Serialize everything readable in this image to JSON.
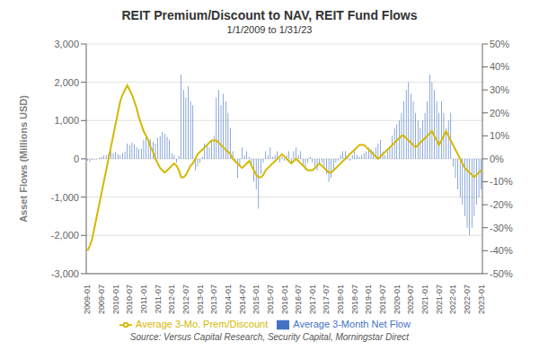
{
  "chart_data": {
    "type": "bar",
    "title": "REIT Premium/Discount to NAV, REIT Fund Flows",
    "subtitle": "1/1/2009 to 1/31/23",
    "ylabel": "Asset Flows (Millions USD)",
    "annotations": [
      "Source: Versus Capital Research, Security Capital, Morningstar Direct"
    ],
    "categories": [
      "2009-01",
      null,
      null,
      null,
      null,
      null,
      "2009-07",
      null,
      null,
      null,
      null,
      null,
      "2010-01",
      null,
      null,
      null,
      null,
      null,
      "2010-07",
      null,
      null,
      null,
      null,
      null,
      "2011-01",
      null,
      null,
      null,
      null,
      null,
      "2011-07",
      null,
      null,
      null,
      null,
      null,
      "2012-01",
      null,
      null,
      null,
      null,
      null,
      "2012-07",
      null,
      null,
      null,
      null,
      null,
      "2013-01",
      null,
      null,
      null,
      null,
      null,
      "2013-07",
      null,
      null,
      null,
      null,
      null,
      "2014-01",
      null,
      null,
      null,
      null,
      null,
      "2014-07",
      null,
      null,
      null,
      null,
      null,
      "2015-01",
      null,
      null,
      null,
      null,
      null,
      "2015-07",
      null,
      null,
      null,
      null,
      null,
      "2016-01",
      null,
      null,
      null,
      null,
      null,
      "2016-07",
      null,
      null,
      null,
      null,
      null,
      "2017-01",
      null,
      null,
      null,
      null,
      null,
      "2017-07",
      null,
      null,
      null,
      null,
      null,
      "2018-01",
      null,
      null,
      null,
      null,
      null,
      "2018-07",
      null,
      null,
      null,
      null,
      null,
      "2019-01",
      null,
      null,
      null,
      null,
      null,
      "2019-07",
      null,
      null,
      null,
      null,
      null,
      "2020-01",
      null,
      null,
      null,
      null,
      null,
      "2020-07",
      null,
      null,
      null,
      null,
      null,
      "2021-01",
      null,
      null,
      null,
      null,
      null,
      "2021-07",
      null,
      null,
      null,
      null,
      null,
      "2022-01",
      null,
      null,
      null,
      null,
      null,
      "2022-07",
      null,
      null,
      null,
      null,
      null,
      "2023-01"
    ],
    "series": [
      {
        "name": "Average 3-Month Net Flow",
        "type": "bar",
        "color": "#4472c4",
        "values": [
          -50,
          -80,
          -30,
          -20,
          -10,
          30,
          50,
          80,
          100,
          120,
          200,
          150,
          180,
          130,
          90,
          160,
          190,
          400,
          350,
          420,
          380,
          300,
          250,
          270,
          500,
          600,
          480,
          520,
          450,
          400,
          550,
          600,
          700,
          650,
          580,
          500,
          150,
          100,
          -100,
          80,
          2200,
          1800,
          1600,
          1900,
          1500,
          1400,
          -300,
          -200,
          -100,
          50,
          400,
          350,
          300,
          500,
          600,
          1600,
          1800,
          1400,
          1700,
          1500,
          1200,
          800,
          200,
          -100,
          -500,
          -200,
          300,
          100,
          200,
          50,
          -200,
          -600,
          -800,
          -1300,
          -400,
          -100,
          200,
          100,
          300,
          50,
          100,
          200,
          -100,
          50,
          -50,
          100,
          200,
          -100,
          200,
          300,
          100,
          200,
          -200,
          -300,
          -100,
          50,
          -100,
          -200,
          -300,
          -150,
          -100,
          -200,
          -400,
          -600,
          -500,
          -300,
          -100,
          -50,
          100,
          200,
          200,
          50,
          -50,
          100,
          200,
          100,
          50,
          100,
          150,
          200,
          300,
          250,
          200,
          300,
          400,
          500,
          200,
          100,
          200,
          300,
          600,
          800,
          900,
          1000,
          1200,
          1500,
          1800,
          2000,
          1700,
          1500,
          1200,
          1000,
          800,
          1000,
          1200,
          1500,
          2200,
          2000,
          1800,
          1500,
          1200,
          1500,
          1200,
          800,
          1000,
          1200,
          -200,
          -500,
          -800,
          -1000,
          -1200,
          -1500,
          -1800,
          -2000,
          -1800,
          -1500,
          -1200,
          -1000,
          -800
        ]
      },
      {
        "name": "Average 3-Mo. Prem/Discount",
        "type": "line",
        "axis": "y2",
        "color": "#d4b800",
        "values": [
          -40,
          -38,
          -35,
          -30,
          -25,
          -20,
          -15,
          -10,
          -5,
          0,
          5,
          10,
          15,
          20,
          25,
          28,
          30,
          32,
          30,
          28,
          25,
          22,
          18,
          15,
          12,
          10,
          8,
          5,
          3,
          0,
          -2,
          -4,
          -5,
          -6,
          -5,
          -4,
          -3,
          -2,
          -3,
          -5,
          -8,
          -8,
          -7,
          -5,
          -3,
          -2,
          0,
          2,
          3,
          4,
          5,
          6,
          7,
          8,
          8,
          8,
          7,
          6,
          5,
          4,
          3,
          2,
          0,
          -1,
          -2,
          -3,
          -4,
          -3,
          -2,
          -1,
          -3,
          -5,
          -7,
          -8,
          -8,
          -7,
          -5,
          -4,
          -3,
          -2,
          -1,
          0,
          1,
          2,
          1,
          0,
          -1,
          -2,
          -1,
          0,
          -1,
          -2,
          -3,
          -4,
          -5,
          -5,
          -5,
          -4,
          -3,
          -2,
          -3,
          -4,
          -5,
          -6,
          -6,
          -5,
          -4,
          -3,
          -2,
          -1,
          0,
          1,
          2,
          3,
          4,
          5,
          6,
          6,
          6,
          5,
          4,
          3,
          2,
          1,
          0,
          1,
          2,
          3,
          4,
          5,
          6,
          7,
          8,
          9,
          10,
          10,
          9,
          8,
          7,
          6,
          5,
          6,
          7,
          8,
          9,
          10,
          11,
          12,
          10,
          8,
          6,
          8,
          10,
          12,
          10,
          8,
          6,
          4,
          2,
          0,
          -2,
          -4,
          -5,
          -6,
          -7,
          -8,
          -7,
          -6,
          -5
        ]
      }
    ],
    "ylim": [
      -3000,
      3000
    ],
    "yticks": [
      {
        "value": -3000,
        "label": "-3,000"
      },
      {
        "value": -2000,
        "label": "-2,000"
      },
      {
        "value": -1000,
        "label": "-1,000"
      },
      0,
      {
        "value": 1000,
        "label": "1,000"
      },
      {
        "value": 2000,
        "label": "2,000"
      },
      {
        "value": 3000,
        "label": "3,000"
      }
    ],
    "y2lim": [
      -50,
      50
    ],
    "y2ticks": [
      {
        "value": -50,
        "label": "-50%"
      },
      {
        "value": -40,
        "label": "-40%"
      },
      {
        "value": -30,
        "label": "-30%"
      },
      {
        "value": -20,
        "label": "-20%"
      },
      {
        "value": -10,
        "label": "-10%"
      },
      {
        "value": 0,
        "label": "0%"
      },
      {
        "value": 10,
        "label": "10%"
      },
      {
        "value": 20,
        "label": "20%"
      },
      {
        "value": 30,
        "label": "30%"
      },
      {
        "value": 40,
        "label": "40%"
      },
      {
        "value": 50,
        "label": "50%"
      }
    ],
    "grid": true,
    "legend": "bottom"
  }
}
